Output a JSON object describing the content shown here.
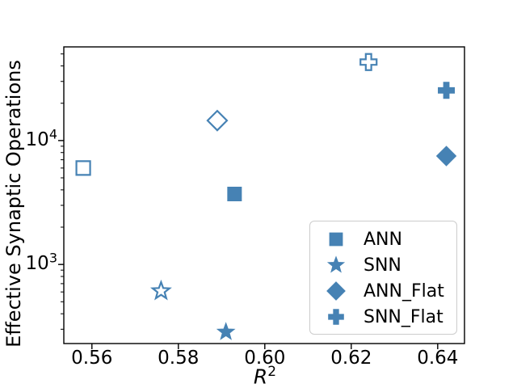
{
  "figure": {
    "background_color": "#ffffff",
    "accent_color": "#4682b4",
    "spine_color": "#000000",
    "tick_color": "#000000",
    "legend_border_color": "#cccccc"
  },
  "chart_data": {
    "type": "scatter",
    "title": "",
    "xlabel": "R²",
    "xlabel_parts": {
      "base": "R",
      "exp": "2"
    },
    "ylabel": "Effective Synaptic Operations",
    "xscale": "linear",
    "yscale": "log",
    "xlim": [
      0.5535,
      0.6462
    ],
    "ylim": [
      230,
      57000
    ],
    "xticks": [
      0.56,
      0.58,
      0.6,
      0.62,
      0.64
    ],
    "xtick_labels": [
      "0.56",
      "0.58",
      "0.60",
      "0.62",
      "0.64"
    ],
    "yticks": [
      1000,
      10000
    ],
    "ytick_labels": [
      {
        "base": "10",
        "exp": "3"
      },
      {
        "base": "10",
        "exp": "4"
      }
    ],
    "grid": false,
    "legend": {
      "position": "lower right",
      "entries": [
        {
          "label": "ANN",
          "marker": "square"
        },
        {
          "label": "SNN",
          "marker": "star"
        },
        {
          "label": "ANN_Flat",
          "marker": "diamond"
        },
        {
          "label": "SNN_Flat",
          "marker": "plus"
        }
      ]
    },
    "series": [
      {
        "name": "ANN",
        "marker": "square",
        "color": "#4682b4",
        "points": [
          {
            "x": 0.593,
            "y": 3700,
            "style": "filled"
          },
          {
            "x": 0.558,
            "y": 6000,
            "style": "open"
          }
        ]
      },
      {
        "name": "SNN",
        "marker": "star",
        "color": "#4682b4",
        "points": [
          {
            "x": 0.591,
            "y": 285,
            "style": "filled"
          },
          {
            "x": 0.576,
            "y": 610,
            "style": "open"
          }
        ]
      },
      {
        "name": "ANN_Flat",
        "marker": "diamond",
        "color": "#4682b4",
        "points": [
          {
            "x": 0.642,
            "y": 7500,
            "style": "filled"
          },
          {
            "x": 0.589,
            "y": 14500,
            "style": "open"
          }
        ]
      },
      {
        "name": "SNN_Flat",
        "marker": "plus",
        "color": "#4682b4",
        "points": [
          {
            "x": 0.642,
            "y": 25400,
            "style": "filled"
          },
          {
            "x": 0.624,
            "y": 43000,
            "style": "open"
          }
        ]
      }
    ]
  }
}
